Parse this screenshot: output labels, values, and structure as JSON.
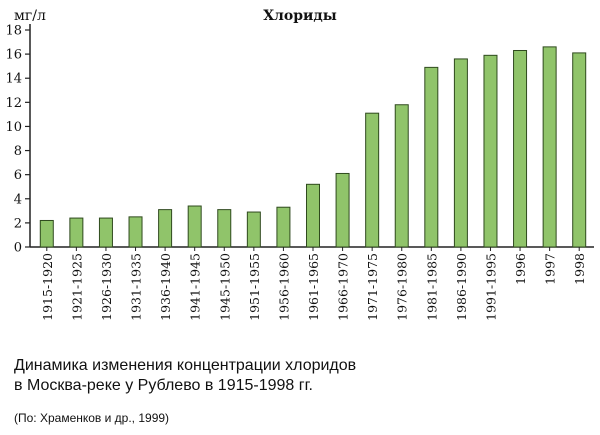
{
  "chart_data": {
    "type": "bar",
    "title": "Хлориды",
    "ylabel": "мг/л",
    "xlabel": "",
    "ylim": [
      0,
      18
    ],
    "yticks": [
      0,
      2,
      4,
      6,
      8,
      10,
      12,
      14,
      16,
      18
    ],
    "grid": false,
    "legend": "none",
    "bar_color": "#90c46a",
    "bar_edge_color": "#2f4a1e",
    "categories": [
      "1915-1920",
      "1921-1925",
      "1926-1930",
      "1931-1935",
      "1936-1940",
      "1941-1945",
      "1945-1950",
      "1951-1955",
      "1956-1960",
      "1961-1965",
      "1966-1970",
      "1971-1975",
      "1976-1980",
      "1981-1985",
      "1986-1990",
      "1991-1995",
      "1996",
      "1997",
      "1998"
    ],
    "values": [
      2.2,
      2.4,
      2.4,
      2.5,
      3.1,
      3.4,
      3.1,
      2.9,
      3.3,
      5.2,
      6.1,
      11.1,
      11.8,
      14.9,
      15.6,
      15.9,
      16.3,
      16.6,
      16.1
    ]
  },
  "caption": {
    "line1": "Динамика изменения концентрации хлоридов",
    "line2": "в Москва-реке у Рублево в 1915-1998 гг."
  },
  "source": "(По: Храменков и др., 1999)"
}
